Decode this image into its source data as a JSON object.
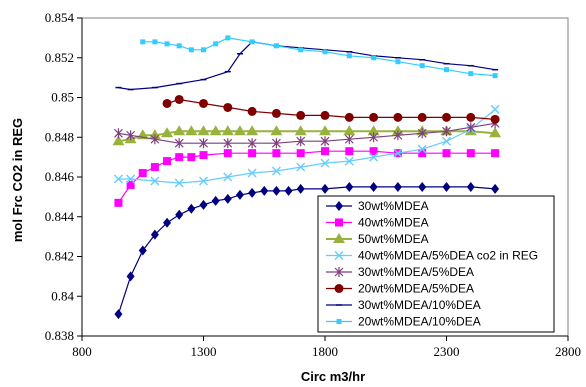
{
  "chart_data": {
    "type": "line",
    "title": "",
    "xlabel": "Circ m3/hr",
    "ylabel": "mol Frc CO2 in REG",
    "xlim": [
      800,
      2800
    ],
    "ylim": [
      0.838,
      0.854
    ],
    "xticks": [
      800,
      1300,
      1800,
      2300,
      2800
    ],
    "xtick_labels": [
      "800",
      "1300",
      "1800",
      "2300",
      "2800"
    ],
    "yticks": [
      0.838,
      0.84,
      0.842,
      0.844,
      0.846,
      0.848,
      0.85,
      0.852,
      0.854
    ],
    "ytick_labels": [
      "0.838",
      "0.84",
      "0.842",
      "0.844",
      "0.846",
      "0.848",
      "0.85",
      "0.852",
      "0.854"
    ],
    "grid": false,
    "legend_position": "bottom-right",
    "series": [
      {
        "name": "30wt%MDEA",
        "color": "#000080",
        "marker": "diamond",
        "x": [
          950,
          1000,
          1050,
          1100,
          1150,
          1200,
          1250,
          1300,
          1350,
          1400,
          1450,
          1500,
          1550,
          1600,
          1650,
          1700,
          1800,
          1900,
          2000,
          2100,
          2200,
          2300,
          2400,
          2500
        ],
        "y": [
          0.8391,
          0.841,
          0.8423,
          0.8431,
          0.8437,
          0.8441,
          0.8444,
          0.8446,
          0.8448,
          0.8449,
          0.8451,
          0.8452,
          0.8453,
          0.8453,
          0.8453,
          0.8454,
          0.8454,
          0.8455,
          0.8455,
          0.8455,
          0.8455,
          0.8455,
          0.8455,
          0.8454
        ]
      },
      {
        "name": "40wt%MDEA",
        "color": "#ff00ff",
        "marker": "square",
        "x": [
          950,
          1000,
          1050,
          1100,
          1150,
          1200,
          1250,
          1300,
          1400,
          1500,
          1600,
          1700,
          1800,
          1900,
          2000,
          2100,
          2200,
          2300,
          2400,
          2500
        ],
        "y": [
          0.8447,
          0.8456,
          0.8462,
          0.8465,
          0.8468,
          0.847,
          0.847,
          0.8471,
          0.8472,
          0.8472,
          0.8472,
          0.8472,
          0.8473,
          0.8473,
          0.8473,
          0.8472,
          0.8472,
          0.8472,
          0.8472,
          0.8472
        ]
      },
      {
        "name": "50wt%MDEA",
        "color": "#99b23d",
        "marker": "triangle",
        "x": [
          950,
          1000,
          1050,
          1100,
          1150,
          1200,
          1250,
          1300,
          1350,
          1400,
          1450,
          1500,
          1600,
          1700,
          1800,
          1900,
          2000,
          2100,
          2200,
          2300,
          2400,
          2500
        ],
        "y": [
          0.8478,
          0.8479,
          0.8481,
          0.8481,
          0.8482,
          0.8483,
          0.8483,
          0.8483,
          0.8483,
          0.8483,
          0.8483,
          0.8483,
          0.8483,
          0.8483,
          0.8483,
          0.8483,
          0.8483,
          0.8483,
          0.8483,
          0.8483,
          0.8483,
          0.8482
        ]
      },
      {
        "name": "40wt%MDEA/5%DEA co2 in REG",
        "color": "#66ccff",
        "marker": "x",
        "x": [
          950,
          1000,
          1100,
          1200,
          1300,
          1400,
          1500,
          1600,
          1700,
          1800,
          1900,
          2000,
          2100,
          2200,
          2300,
          2400,
          2500
        ],
        "y": [
          0.8459,
          0.8459,
          0.8458,
          0.8457,
          0.8458,
          0.846,
          0.8462,
          0.8463,
          0.8465,
          0.8467,
          0.8468,
          0.847,
          0.8472,
          0.8474,
          0.8478,
          0.8484,
          0.8494
        ]
      },
      {
        "name": "30wt%MDEA/5%DEA",
        "color": "#7f3f7f",
        "marker": "star",
        "x": [
          950,
          1000,
          1100,
          1200,
          1300,
          1400,
          1500,
          1600,
          1700,
          1800,
          1900,
          2000,
          2100,
          2200,
          2300,
          2400,
          2500
        ],
        "y": [
          0.8482,
          0.8481,
          0.8479,
          0.8477,
          0.8477,
          0.8477,
          0.8477,
          0.8477,
          0.8478,
          0.8478,
          0.8479,
          0.848,
          0.8481,
          0.8482,
          0.8483,
          0.8485,
          0.8487
        ]
      },
      {
        "name": "20wt%MDEA/5%DEA",
        "color": "#800000",
        "marker": "circle",
        "x": [
          1150,
          1200,
          1300,
          1400,
          1500,
          1600,
          1700,
          1800,
          1900,
          2000,
          2100,
          2200,
          2300,
          2400,
          2500
        ],
        "y": [
          0.8497,
          0.8499,
          0.8497,
          0.8495,
          0.8493,
          0.8492,
          0.8491,
          0.8491,
          0.849,
          0.849,
          0.849,
          0.849,
          0.849,
          0.849,
          0.8489
        ]
      },
      {
        "name": "30wt%MDEA/10%DEA",
        "color": "#000080",
        "marker": "dash",
        "x": [
          950,
          1000,
          1100,
          1200,
          1300,
          1400,
          1450,
          1500,
          1600,
          1700,
          1800,
          1900,
          2000,
          2100,
          2200,
          2300,
          2400,
          2500
        ],
        "y": [
          0.8505,
          0.8504,
          0.8505,
          0.8507,
          0.8509,
          0.8513,
          0.8522,
          0.8528,
          0.8526,
          0.8525,
          0.8524,
          0.8523,
          0.8521,
          0.852,
          0.8519,
          0.8517,
          0.8516,
          0.8514
        ]
      },
      {
        "name": "20wt%MDEA/10%DEA",
        "color": "#33ccff",
        "marker": "square-small",
        "x": [
          1050,
          1100,
          1150,
          1200,
          1250,
          1300,
          1350,
          1400,
          1500,
          1600,
          1700,
          1800,
          1900,
          2000,
          2100,
          2200,
          2300,
          2400,
          2500
        ],
        "y": [
          0.8528,
          0.8528,
          0.8527,
          0.8526,
          0.8524,
          0.8524,
          0.8527,
          0.853,
          0.8528,
          0.8526,
          0.8524,
          0.8523,
          0.8521,
          0.852,
          0.8518,
          0.8516,
          0.8514,
          0.8512,
          0.8511
        ]
      }
    ]
  }
}
